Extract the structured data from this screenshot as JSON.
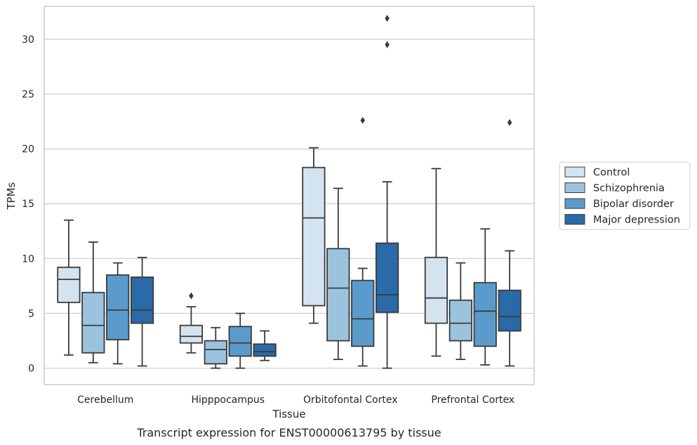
{
  "caption": "Transcript expression for ENST00000613795 by tissue",
  "chart_data": {
    "type": "boxplot",
    "xlabel": "Tissue",
    "ylabel": "TPMs",
    "ylim": [
      -1.5,
      33
    ],
    "yticks": [
      0,
      5,
      10,
      15,
      20,
      25,
      30
    ],
    "grid": "horizontal",
    "legend_position": "right",
    "categories": [
      "Cerebellum",
      "Hipppocampus",
      "Orbitofontal Cortex",
      "Prefrontal Cortex"
    ],
    "series": [
      {
        "name": "Control",
        "color": "#d4e3f0",
        "boxes": [
          {
            "whislo": 1.2,
            "q1": 6.0,
            "med": 8.1,
            "q3": 9.2,
            "whishi": 13.5,
            "fliers": []
          },
          {
            "whislo": 1.4,
            "q1": 2.3,
            "med": 2.9,
            "q3": 3.9,
            "whishi": 5.6,
            "fliers": [
              6.6
            ]
          },
          {
            "whislo": 4.1,
            "q1": 5.7,
            "med": 13.7,
            "q3": 18.3,
            "whishi": 20.1,
            "fliers": []
          },
          {
            "whislo": 1.1,
            "q1": 4.1,
            "med": 6.4,
            "q3": 10.1,
            "whishi": 18.2,
            "fliers": []
          }
        ]
      },
      {
        "name": "Schizophrenia",
        "color": "#9bc3dd",
        "boxes": [
          {
            "whislo": 0.5,
            "q1": 1.4,
            "med": 3.9,
            "q3": 6.9,
            "whishi": 11.5,
            "fliers": []
          },
          {
            "whislo": 0.0,
            "q1": 0.4,
            "med": 1.7,
            "q3": 2.5,
            "whishi": 3.7,
            "fliers": []
          },
          {
            "whislo": 0.8,
            "q1": 2.5,
            "med": 7.3,
            "q3": 10.9,
            "whishi": 16.4,
            "fliers": []
          },
          {
            "whislo": 0.8,
            "q1": 2.5,
            "med": 4.1,
            "q3": 6.2,
            "whishi": 9.6,
            "fliers": []
          }
        ]
      },
      {
        "name": "Bipolar disorder",
        "color": "#5b9bcb",
        "boxes": [
          {
            "whislo": 0.4,
            "q1": 2.6,
            "med": 5.3,
            "q3": 8.5,
            "whishi": 9.6,
            "fliers": []
          },
          {
            "whislo": 0.0,
            "q1": 1.1,
            "med": 2.3,
            "q3": 3.8,
            "whishi": 5.0,
            "fliers": []
          },
          {
            "whislo": 0.2,
            "q1": 2.0,
            "med": 4.5,
            "q3": 8.0,
            "whishi": 9.1,
            "fliers": [
              22.6
            ]
          },
          {
            "whislo": 0.3,
            "q1": 2.0,
            "med": 5.2,
            "q3": 7.8,
            "whishi": 12.7,
            "fliers": []
          }
        ]
      },
      {
        "name": "Major depression",
        "color": "#2a6aa8",
        "boxes": [
          {
            "whislo": 0.2,
            "q1": 4.1,
            "med": 5.3,
            "q3": 8.3,
            "whishi": 10.1,
            "fliers": []
          },
          {
            "whislo": 0.7,
            "q1": 1.1,
            "med": 1.5,
            "q3": 2.2,
            "whishi": 3.4,
            "fliers": []
          },
          {
            "whislo": 0.0,
            "q1": 5.1,
            "med": 6.7,
            "q3": 11.4,
            "whishi": 17.0,
            "fliers": [
              29.5,
              31.9
            ]
          },
          {
            "whislo": 0.2,
            "q1": 3.4,
            "med": 4.7,
            "q3": 7.1,
            "whishi": 10.7,
            "fliers": [
              22.4
            ]
          }
        ]
      }
    ]
  }
}
